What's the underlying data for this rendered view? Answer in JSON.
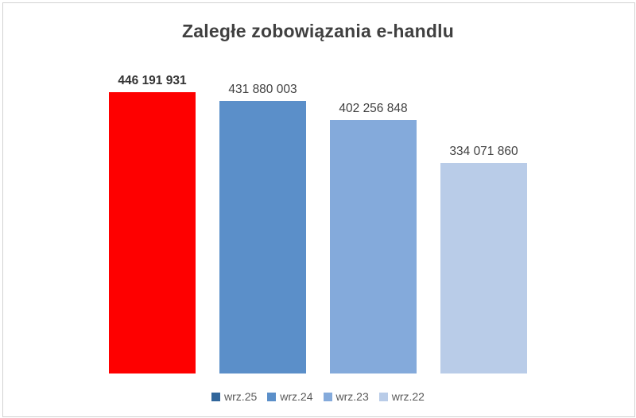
{
  "title": "Zaległe zobowiązania e-handlu",
  "chart_data": {
    "type": "bar",
    "title": "Zaległe zobowiązania e-handlu",
    "categories": [
      "wrz.25",
      "wrz.24",
      "wrz.23",
      "wrz.22"
    ],
    "values": [
      446191931,
      431880003,
      402256848,
      334071860
    ],
    "value_labels": [
      "446 191 931",
      "431 880 003",
      "402 256 848",
      "334 071 860"
    ],
    "xlabel": "",
    "ylabel": "",
    "ylim": [
      0,
      446191931
    ],
    "grid": false,
    "legend_position": "bottom",
    "bar_colors": [
      "#fe0000",
      "#5b8fc9",
      "#84aadb",
      "#b9cce8"
    ],
    "legend_colors": [
      "#31669b",
      "#5b8fc9",
      "#84aadb",
      "#b9cce8"
    ],
    "emphasized_index": 0,
    "emphasized_color": "#fe0000"
  }
}
